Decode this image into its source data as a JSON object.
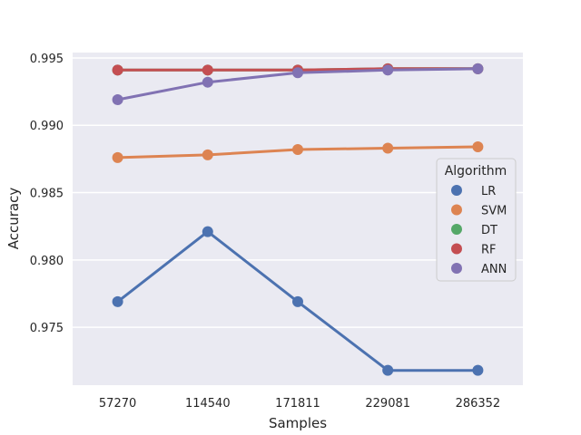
{
  "chart_data": {
    "type": "line",
    "xlabel": "Samples",
    "ylabel": "Accuracy",
    "categories": [
      "57270",
      "114540",
      "171811",
      "229081",
      "286352"
    ],
    "ylim": [
      0.9707,
      0.9954
    ],
    "yticks": [
      "0.975",
      "0.980",
      "0.985",
      "0.990",
      "0.995"
    ],
    "grid": true,
    "legend": {
      "title": "Algorithm",
      "placement": "center-right"
    },
    "series": [
      {
        "name": "LR",
        "color": "#4c72b0",
        "values": [
          0.9769,
          0.9821,
          0.9769,
          0.9718,
          0.9718
        ]
      },
      {
        "name": "SVM",
        "color": "#dd8452",
        "values": [
          0.9876,
          0.9878,
          0.9882,
          0.9883,
          0.9884
        ]
      },
      {
        "name": "DT",
        "color": "#55a868",
        "values": [
          0.9941,
          0.9941,
          0.9941,
          0.9942,
          0.9942
        ]
      },
      {
        "name": "RF",
        "color": "#c44e52",
        "values": [
          0.9941,
          0.9941,
          0.9941,
          0.9942,
          0.9942
        ]
      },
      {
        "name": "ANN",
        "color": "#8172b3",
        "values": [
          0.9919,
          0.9932,
          0.9939,
          0.9941,
          0.9942
        ]
      }
    ]
  }
}
